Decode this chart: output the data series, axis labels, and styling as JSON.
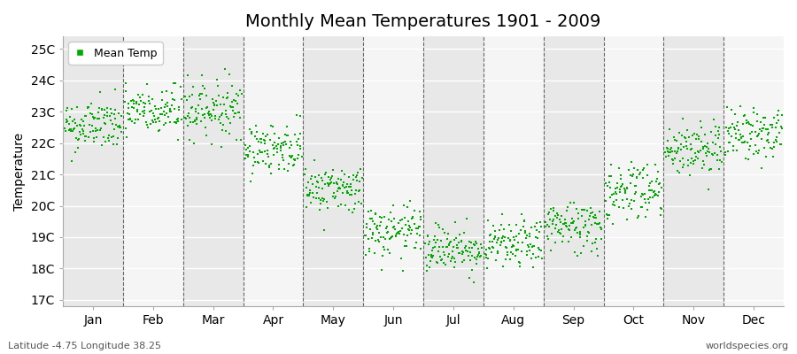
{
  "title": "Monthly Mean Temperatures 1901 - 2009",
  "ylabel": "Temperature",
  "xlabel_labels": [
    "Jan",
    "Feb",
    "Mar",
    "Apr",
    "May",
    "Jun",
    "Jul",
    "Aug",
    "Sep",
    "Oct",
    "Nov",
    "Dec"
  ],
  "ytick_labels": [
    "17C",
    "18C",
    "19C",
    "20C",
    "21C",
    "22C",
    "23C",
    "24C",
    "25C"
  ],
  "ytick_values": [
    17,
    18,
    19,
    20,
    21,
    22,
    23,
    24,
    25
  ],
  "ylim": [
    16.8,
    25.4
  ],
  "legend_label": "Mean Temp",
  "marker_color": "#00aa00",
  "background_color": "#ffffff",
  "plot_bg_color": "#ffffff",
  "stripe_color_odd": "#e8e8e8",
  "stripe_color_even": "#f5f5f5",
  "subtitle_left": "Latitude -4.75 Longitude 38.25",
  "subtitle_right": "worldspecies.org",
  "monthly_means": [
    22.55,
    23.0,
    23.1,
    21.85,
    20.55,
    19.15,
    18.65,
    18.75,
    19.35,
    20.5,
    21.8,
    22.3
  ],
  "monthly_stds": [
    0.42,
    0.42,
    0.45,
    0.4,
    0.38,
    0.42,
    0.38,
    0.38,
    0.42,
    0.5,
    0.45,
    0.42
  ],
  "n_years": 109,
  "seed": 42,
  "xlim": [
    0,
    12
  ]
}
